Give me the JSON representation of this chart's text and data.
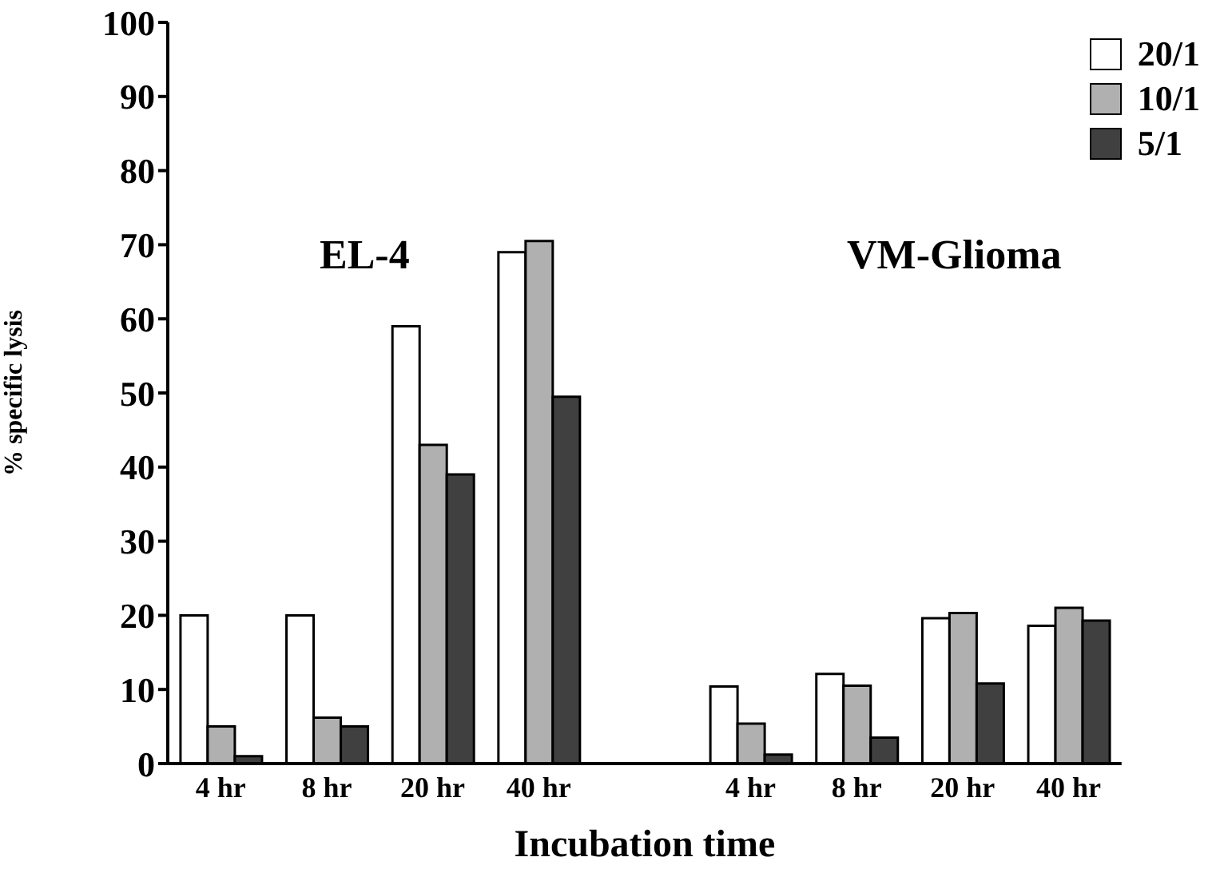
{
  "chart_data": {
    "type": "bar",
    "xlabel": "Incubation time",
    "ylabel": "% specific lysis",
    "categories": [
      "4 hr",
      "8 hr",
      "20 hr",
      "40 hr",
      null,
      "4 hr",
      "8 hr",
      "20 hr",
      "40 hr"
    ],
    "series": [
      {
        "name": "20/1",
        "color": "#ffffff",
        "values": [
          20,
          20,
          59,
          69,
          null,
          10.4,
          12.1,
          19.6,
          18.6
        ]
      },
      {
        "name": "10/1",
        "color": "#b0b0b0",
        "values": [
          5,
          6.2,
          43,
          70.5,
          null,
          5.4,
          10.5,
          20.3,
          21
        ]
      },
      {
        "name": "5/1",
        "color": "#404040",
        "values": [
          1,
          5,
          39,
          49.5,
          null,
          1.2,
          3.5,
          10.8,
          19.3
        ]
      }
    ],
    "annotations": [
      "EL-4",
      "VM-Glioma"
    ],
    "ylim": [
      0,
      100
    ],
    "yticks": [
      0,
      10,
      20,
      30,
      40,
      50,
      60,
      70,
      80,
      90,
      100
    ],
    "grid": false,
    "legend": "top right"
  }
}
